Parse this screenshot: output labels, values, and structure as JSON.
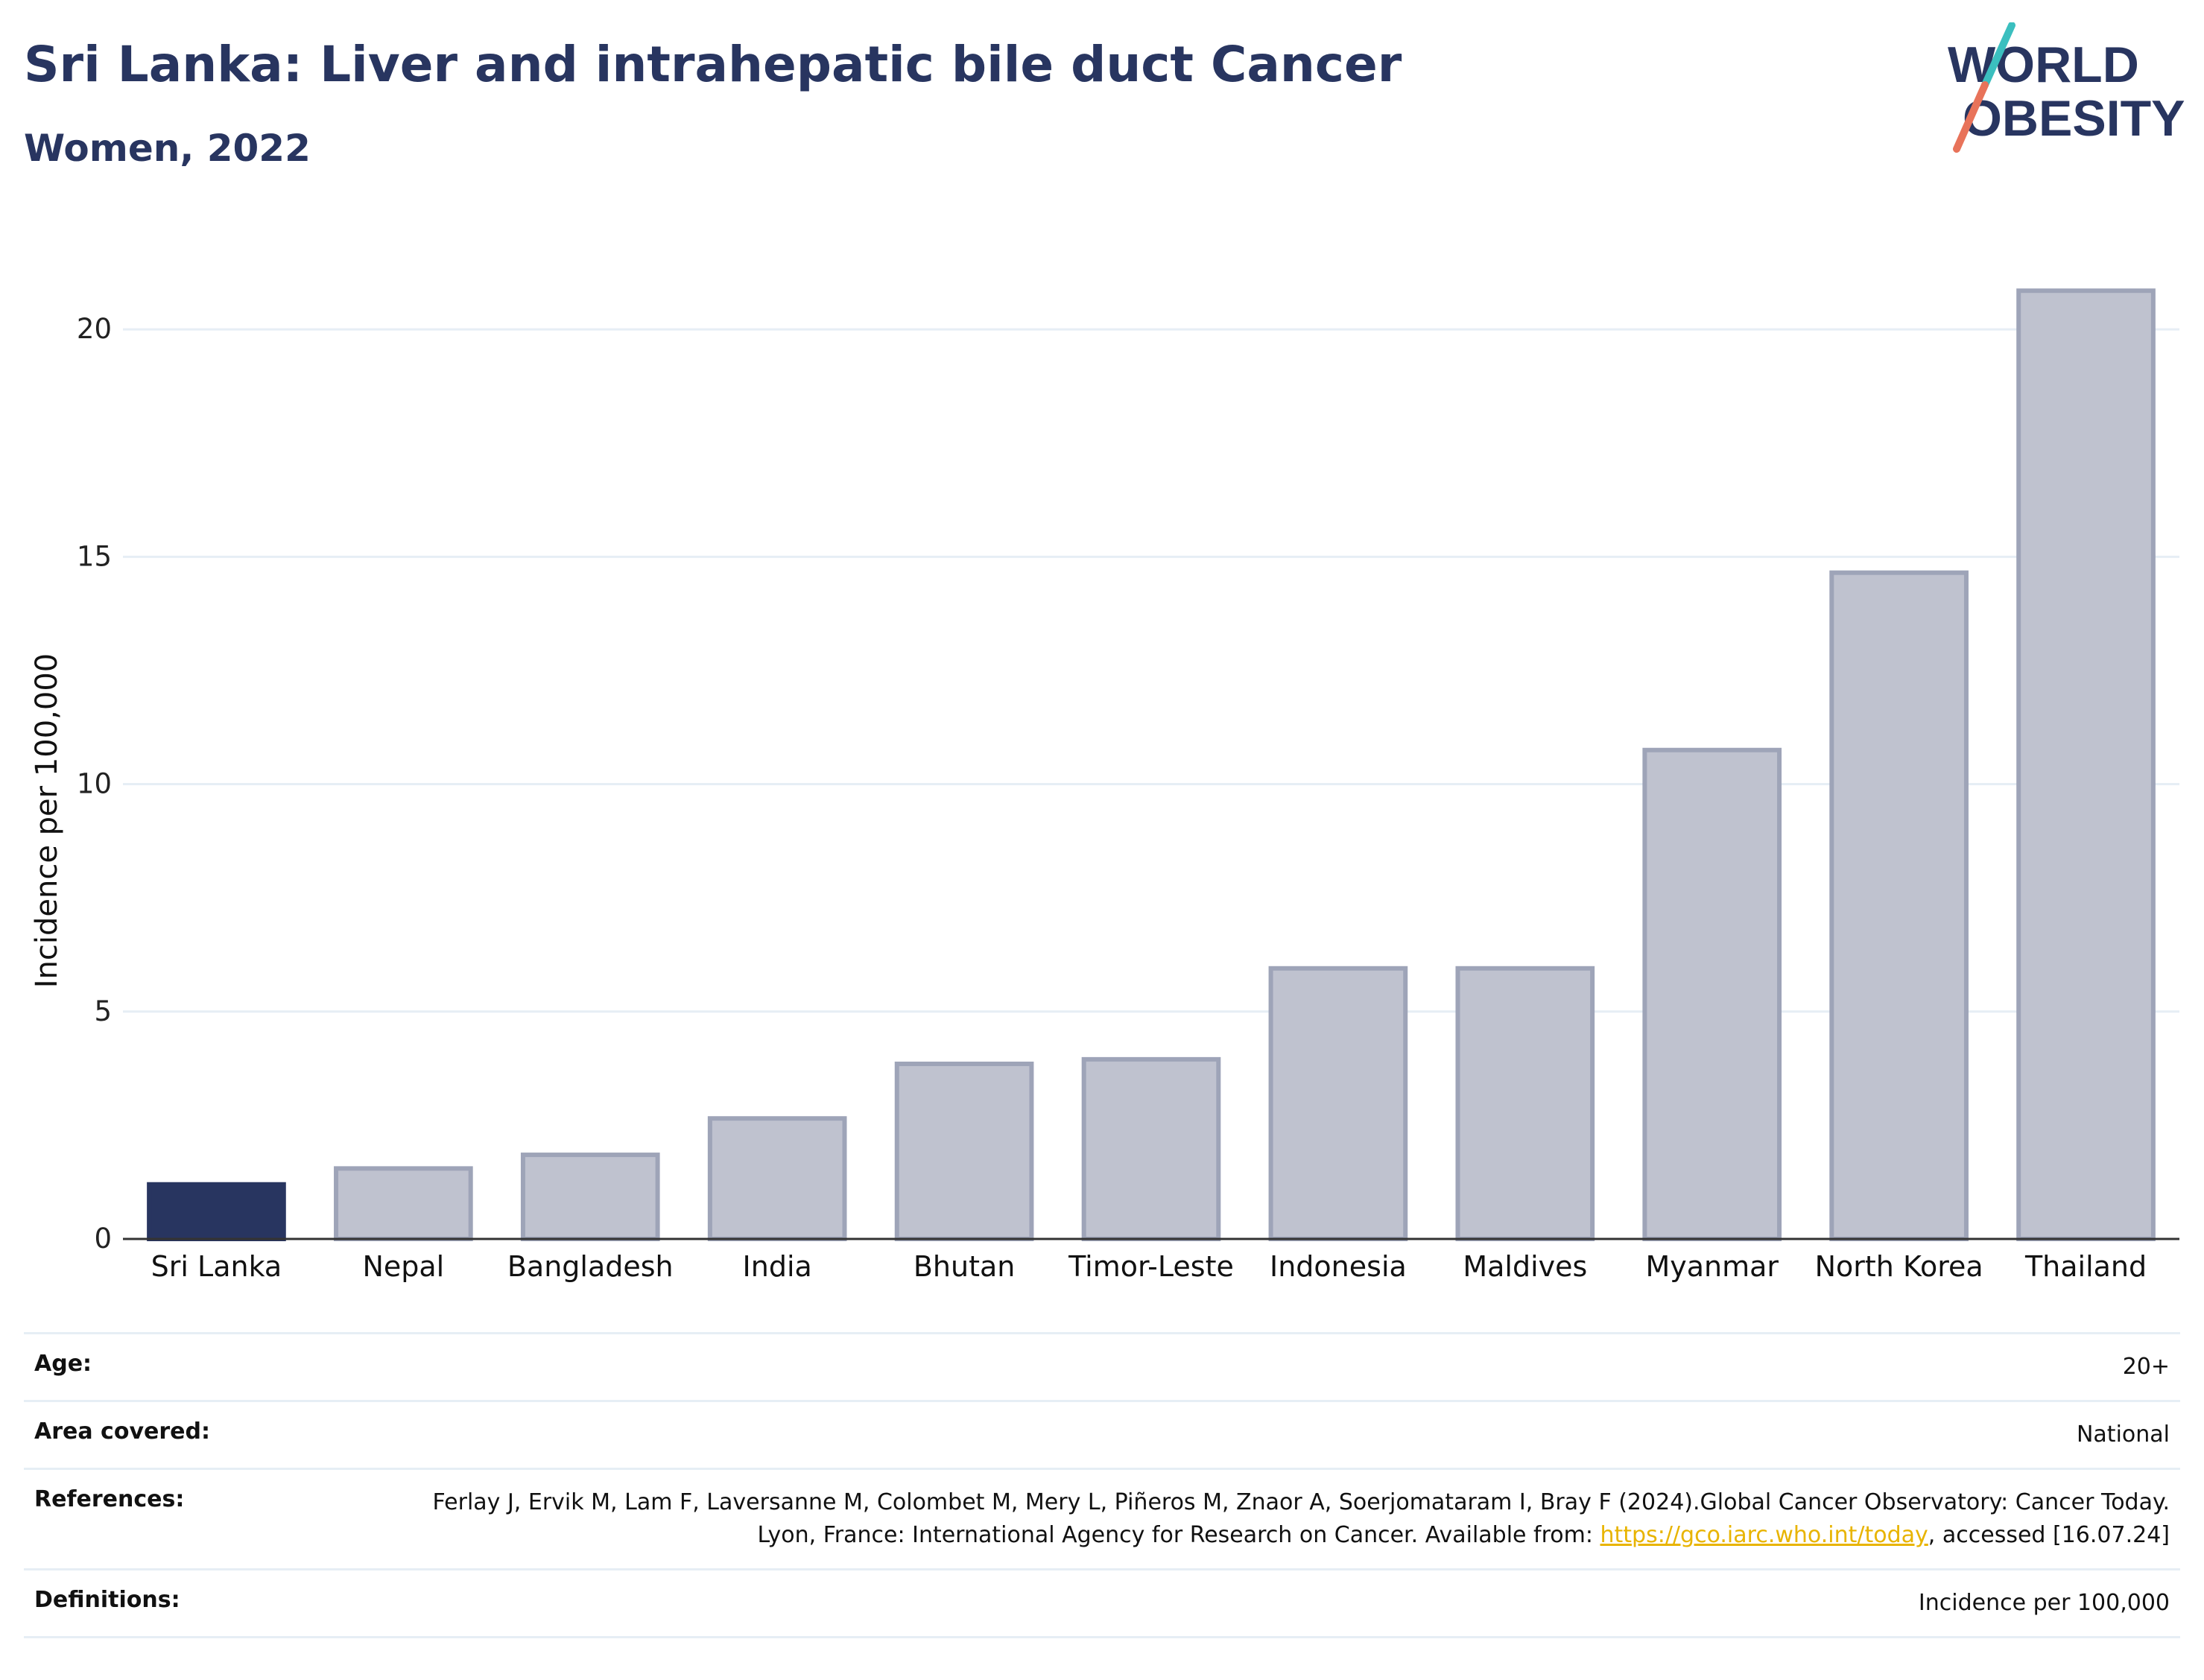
{
  "header": {
    "title": "Sri Lanka: Liver and intrahepatic bile duct Cancer",
    "subtitle": "Women, 2022"
  },
  "logo": {
    "line1": "WORLD",
    "line2": "OBESITY",
    "colors": {
      "text": "#283560",
      "slash_top": "#3bbfbf",
      "slash_bottom": "#e8735a"
    }
  },
  "chart_data": {
    "type": "bar",
    "categories": [
      "Sri Lanka",
      "Nepal",
      "Bangladesh",
      "India",
      "Bhutan",
      "Timor-Leste",
      "Indonesia",
      "Maldives",
      "Myanmar",
      "North Korea",
      "Thailand"
    ],
    "values": [
      1.2,
      1.55,
      1.85,
      2.65,
      3.85,
      3.95,
      5.95,
      5.95,
      10.75,
      14.65,
      20.85
    ],
    "highlight": "Sri Lanka",
    "ylabel": "Incidence per 100,000",
    "xlabel": "",
    "ylim": [
      0,
      22
    ],
    "yticks": [
      0,
      5,
      10,
      15,
      20
    ],
    "grid": true,
    "colors": {
      "highlight": "#283560",
      "bar": "#bfc2cf",
      "bar_edge": "#9ea4b8",
      "grid": "#e6eef5",
      "axis": "#333333"
    }
  },
  "metadata": [
    {
      "label": "Age:",
      "value": "20+"
    },
    {
      "label": "Area covered:",
      "value": "National"
    },
    {
      "label": "References:",
      "value_before": "Ferlay J, Ervik M, Lam F, Laversanne M, Colombet M, Mery L, Piñeros M, Znaor A, Soerjomataram I, Bray F (2024).Global Cancer Observatory: Cancer Today. Lyon, France: International Agency for Research on Cancer. Available from: ",
      "link": "https://gco.iarc.who.int/today",
      "value_after": ", accessed [16.07.24]"
    },
    {
      "label": "Definitions:",
      "value": "Incidence per 100,000"
    }
  ]
}
